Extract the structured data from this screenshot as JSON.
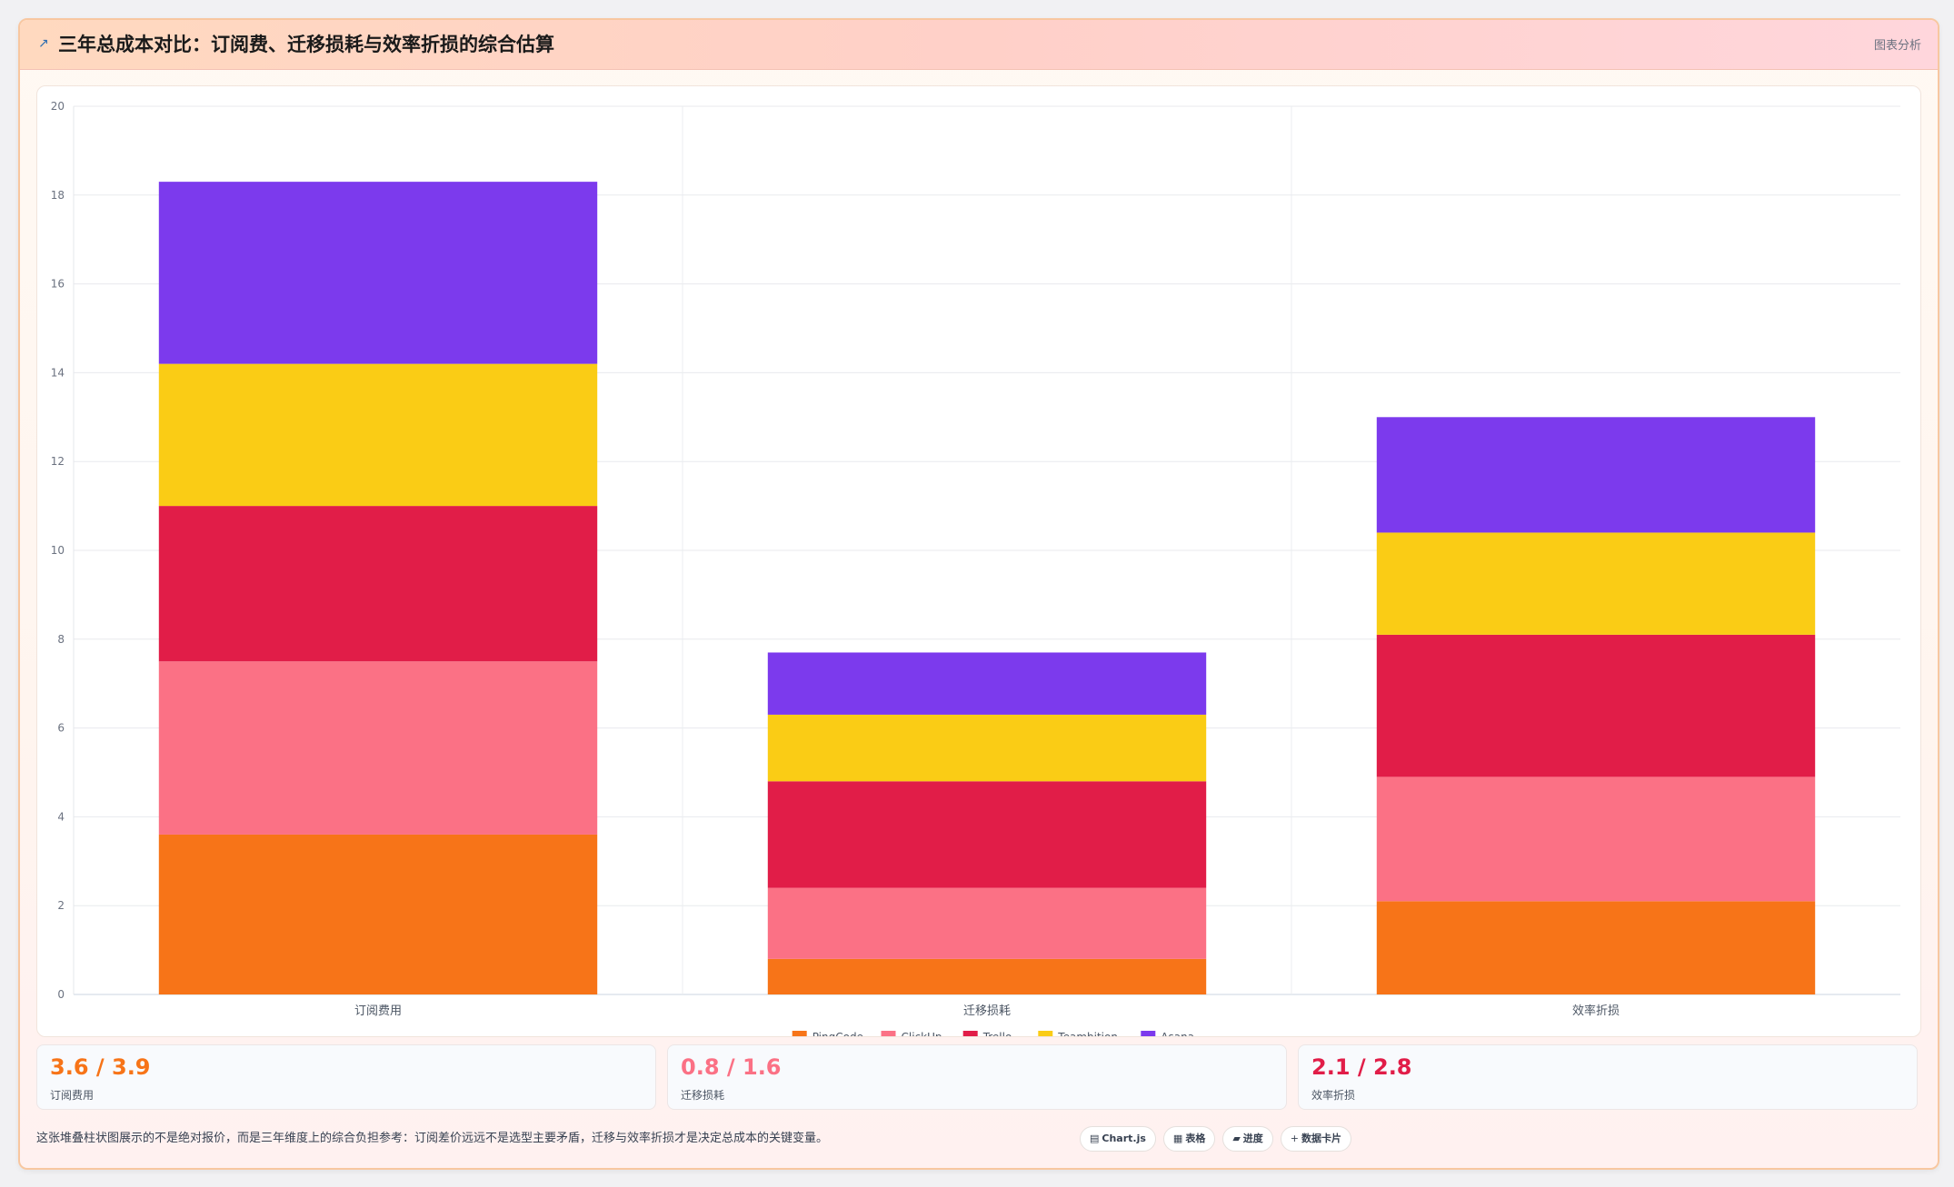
{
  "header": {
    "icon": "chart-icon",
    "title": "三年总成本对比：订阅费、迁移损耗与效率折损的综合估算",
    "tag": "图表分析"
  },
  "chart_data": {
    "type": "bar",
    "stacked": true,
    "categories": [
      "订阅费用",
      "迁移损耗",
      "效率折损"
    ],
    "series": [
      {
        "name": "PingCode",
        "color": "#f77418",
        "values": [
          3.6,
          0.8,
          2.1
        ]
      },
      {
        "name": "ClickUp",
        "color": "#fb7185",
        "values": [
          3.9,
          1.6,
          2.8
        ]
      },
      {
        "name": "Trello",
        "color": "#e11d48",
        "values": [
          3.5,
          2.4,
          3.2
        ]
      },
      {
        "name": "Teambition",
        "color": "#facc15",
        "values": [
          3.2,
          1.5,
          2.3
        ]
      },
      {
        "name": "Asana",
        "color": "#7c3aed",
        "values": [
          4.1,
          1.4,
          2.6
        ]
      }
    ],
    "ylim": [
      0,
      20
    ],
    "yticks": [
      0,
      2,
      4,
      6,
      8,
      10,
      12,
      14,
      16,
      18,
      20
    ],
    "grid": true,
    "legend_position": "bottom"
  },
  "stats": [
    {
      "value": "3.6 / 3.9",
      "label": "订阅费用",
      "color": "#f77418"
    },
    {
      "value": "0.8 / 1.6",
      "label": "迁移损耗",
      "color": "#fb7185"
    },
    {
      "value": "2.1 / 2.8",
      "label": "效率折损",
      "color": "#e11d48"
    }
  ],
  "footer": {
    "note": "这张堆叠柱状图展示的不是绝对报价，而是三年维度上的综合负担参考：订阅差价远远不是选型主要矛盾，迁移与效率折损才是决定总成本的关键变量。",
    "chips": [
      {
        "icon": "▤",
        "label": "Chart.js"
      },
      {
        "icon": "▦",
        "label": "表格"
      },
      {
        "icon": "▰",
        "label": "进度"
      },
      {
        "icon": "+",
        "label": "数据卡片"
      }
    ]
  }
}
